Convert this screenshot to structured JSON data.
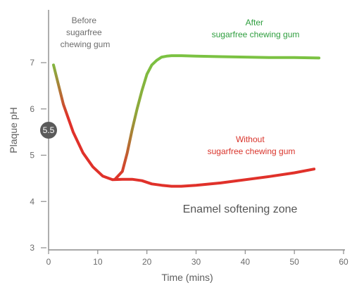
{
  "chart_data": {
    "type": "line",
    "xlabel": "Time (mins)",
    "ylabel": "Plaque pH",
    "xlim": [
      0,
      60
    ],
    "ylim": [
      3,
      7.8
    ],
    "x_ticks": [
      0,
      10,
      20,
      30,
      40,
      50,
      60
    ],
    "y_ticks": [
      3,
      4,
      5,
      6,
      7
    ],
    "grid": false,
    "series": [
      {
        "name": "Without sugarfree chewing gum",
        "x": [
          1,
          3,
          5,
          7,
          9,
          11,
          13,
          15,
          17,
          19,
          21,
          23,
          25,
          27,
          30,
          35,
          40,
          45,
          50,
          54
        ],
        "y": [
          6.95,
          6.1,
          5.5,
          5.05,
          4.75,
          4.55,
          4.47,
          4.48,
          4.48,
          4.45,
          4.38,
          4.35,
          4.33,
          4.33,
          4.35,
          4.4,
          4.47,
          4.54,
          4.62,
          4.7
        ]
      },
      {
        "name": "After sugarfree chewing gum",
        "x": [
          13.5,
          15,
          16,
          17,
          18,
          19,
          20,
          21,
          22,
          23,
          24,
          25,
          27,
          30,
          35,
          40,
          45,
          50,
          55
        ],
        "y": [
          4.48,
          4.65,
          5.05,
          5.55,
          6.0,
          6.4,
          6.75,
          6.95,
          7.05,
          7.12,
          7.14,
          7.15,
          7.15,
          7.14,
          7.13,
          7.12,
          7.11,
          7.11,
          7.1
        ]
      }
    ],
    "annotations": {
      "before": [
        "Before",
        "sugarfree",
        "chewing gum"
      ],
      "after": [
        "After",
        "sugarfree chewing gum"
      ],
      "without": [
        "Without",
        "sugarfree chewing gum"
      ],
      "zone": "Enamel softening zone",
      "critical_marker": "5.5"
    },
    "colors": {
      "green": "#7bc242",
      "red": "#e0312a",
      "before_text": "#6d6d6d",
      "after_text": "#2e9e3e",
      "without_text": "#d9342b",
      "marker": "#5a5a5a"
    }
  }
}
